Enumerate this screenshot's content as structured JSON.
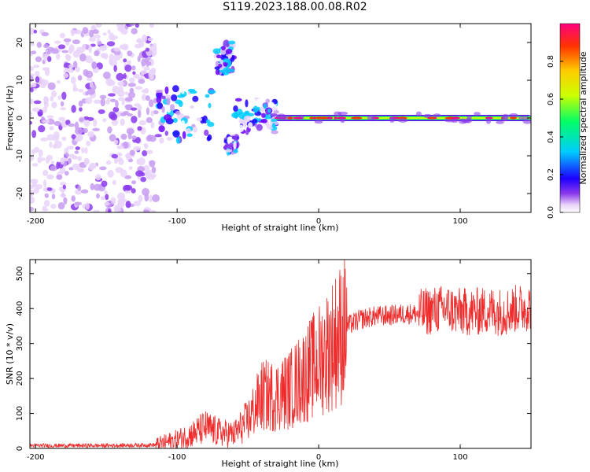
{
  "title": "S119.2023.188.00.08.R02",
  "colors": {
    "snr_line": "#ee2c2c",
    "colormap": [
      "#ffffff",
      "#e9d3f9",
      "#c79cf2",
      "#8a3aec",
      "#6a00ff",
      "#1d00ff",
      "#00ccff",
      "#00ff66",
      "#ccff00",
      "#ffcc00",
      "#ff3300",
      "#ff0080"
    ]
  },
  "chart_data": [
    {
      "type": "heatmap",
      "xlabel": "Height of straight line (km)",
      "ylabel": "Frequency (Hz)",
      "xlim": [
        -204,
        150
      ],
      "ylim": [
        -25,
        25
      ],
      "xticks": [
        -200,
        -100,
        0,
        100
      ],
      "xtick_labels": [
        "-200",
        "-100",
        "0",
        "100"
      ],
      "yticks": [
        -20,
        -10,
        0,
        10,
        20
      ],
      "ytick_labels": [
        "-20",
        "-10",
        "0",
        "10",
        "20"
      ],
      "colorbar": {
        "label": "Normalized spectral amplitude",
        "range": [
          0.0,
          1.0
        ],
        "ticks": [
          0.0,
          0.2,
          0.4,
          0.6,
          0.8
        ],
        "tick_labels": [
          "0.0",
          "0.2",
          "0.4",
          "0.6",
          "0.8"
        ]
      },
      "features": [
        {
          "feature": "broadband noise",
          "x_range": [
            -204,
            -115
          ],
          "y_range": [
            -25,
            25
          ],
          "amplitude": 0.15
        },
        {
          "feature": "signal cluster",
          "x_range": [
            -115,
            -75
          ],
          "y_range": [
            -6,
            8
          ],
          "amplitude": 0.35
        },
        {
          "feature": "signal cluster",
          "x_range": [
            -72,
            -60
          ],
          "y_range": [
            12,
            20
          ],
          "amplitude": 0.3
        },
        {
          "feature": "signal cluster",
          "x_range": [
            -65,
            -58
          ],
          "y_range": [
            -9,
            -5
          ],
          "amplitude": 0.3
        },
        {
          "feature": "signal cluster",
          "x_range": [
            -60,
            -30
          ],
          "y_range": [
            -4,
            5
          ],
          "amplitude": 0.35
        },
        {
          "feature": "carrier tone",
          "x_range": [
            -30,
            150
          ],
          "y_center": 0,
          "amplitude": 0.95
        }
      ]
    },
    {
      "type": "line",
      "xlabel": "Height of straight line (km)",
      "ylabel": "SNR (10 * v/v)",
      "xlim": [
        -204,
        150
      ],
      "ylim": [
        0,
        540
      ],
      "xticks": [
        -200,
        -100,
        0,
        100
      ],
      "xtick_labels": [
        "-200",
        "-100",
        "0",
        "100"
      ],
      "yticks": [
        0,
        100,
        200,
        300,
        400,
        500
      ],
      "ytick_labels": [
        "0",
        "100",
        "200",
        "300",
        "400",
        "500"
      ],
      "series": [
        {
          "trend": {
            "x": [
              -204,
              -150,
              -115,
              -100,
              -90,
              -80,
              -70,
              -60,
              -50,
              -40,
              -30,
              -20,
              -10,
              0,
              10,
              20,
              30,
              40,
              50,
              60,
              70,
              80,
              90,
              100,
              110,
              120,
              130,
              140,
              150
            ],
            "y": [
              8,
              8,
              10,
              25,
              40,
              60,
              45,
              40,
              80,
              150,
              150,
              170,
              210,
              250,
              300,
              350,
              370,
              378,
              380,
              385,
              385,
              395,
              400,
              390,
              390,
              395,
              390,
              400,
              405
            ]
          }
        }
      ]
    }
  ]
}
